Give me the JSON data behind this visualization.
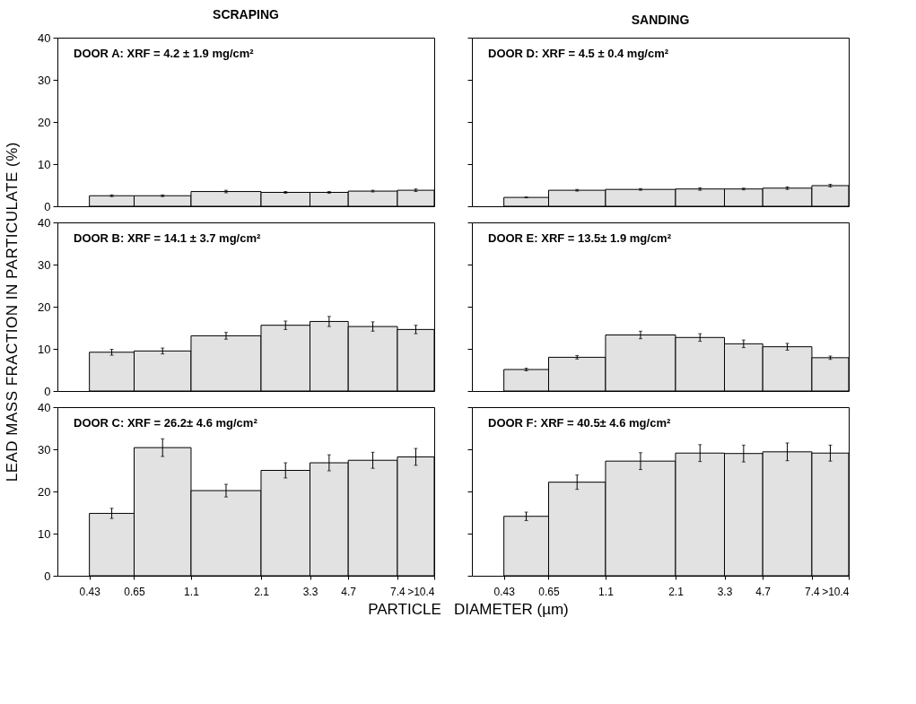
{
  "chart_data": [
    {
      "type": "histogram",
      "title": "SCRAPING",
      "annotations": [
        "DOOR A: XRF = 4.2 ± 1.9 mg/cm²"
      ],
      "bins": [
        0.43,
        0.65,
        1.1,
        2.1,
        3.3,
        4.7,
        7.4,
        10.4
      ],
      "values": [
        2.5,
        2.5,
        3.5,
        3.3,
        3.3,
        3.6,
        3.8
      ],
      "errors": [
        0.2,
        0.2,
        0.3,
        0.2,
        0.2,
        0.2,
        0.3
      ],
      "color": "#e2e2e2",
      "log": "x",
      "xlim": [
        0.32,
        10.4
      ],
      "ylim": [
        0,
        40
      ],
      "yticks": [
        0,
        10,
        20,
        30,
        40
      ],
      "tick_labels": "y"
    },
    {
      "type": "histogram",
      "title": "SANDING",
      "annotations": [
        "DOOR D: XRF = 4.5 ± 0.4 mg/cm²"
      ],
      "bins": [
        0.43,
        0.65,
        1.1,
        2.1,
        3.3,
        4.7,
        7.4,
        10.4
      ],
      "values": [
        2.1,
        3.8,
        4.0,
        4.1,
        4.1,
        4.3,
        4.9
      ],
      "errors": [
        0.1,
        0.2,
        0.2,
        0.3,
        0.2,
        0.3,
        0.3
      ],
      "color": "#e2e2e2",
      "log": "x",
      "xlim": [
        0.32,
        10.4
      ],
      "ylim": [
        0,
        40
      ],
      "yticks": [
        0,
        10,
        20,
        30,
        40
      ],
      "tick_labels": false
    },
    {
      "type": "histogram",
      "ylabel": "LEAD MASS FRACTION IN PARTICULATE (%)",
      "annotations": [
        "DOOR B: XRF = 14.1 ± 3.7 mg/cm²"
      ],
      "bins": [
        0.43,
        0.65,
        1.1,
        2.1,
        3.3,
        4.7,
        7.4,
        10.4
      ],
      "values": [
        9.2,
        9.5,
        13.1,
        15.6,
        16.5,
        15.3,
        14.6
      ],
      "errors": [
        0.7,
        0.7,
        0.8,
        1.0,
        1.2,
        1.1,
        1.0
      ],
      "color": "#e2e2e2",
      "log": "x",
      "xlim": [
        0.32,
        10.4
      ],
      "ylim": [
        0,
        40
      ],
      "yticks": [
        0,
        10,
        20,
        30,
        40
      ],
      "tick_labels": "y"
    },
    {
      "type": "histogram",
      "annotations": [
        "DOOR E: XRF = 13.5± 1.9 mg/cm²"
      ],
      "bins": [
        0.43,
        0.65,
        1.1,
        2.1,
        3.3,
        4.7,
        7.4,
        10.4
      ],
      "values": [
        5.1,
        8.0,
        13.3,
        12.7,
        11.2,
        10.5,
        7.9
      ],
      "errors": [
        0.3,
        0.4,
        0.9,
        0.9,
        0.9,
        0.8,
        0.4
      ],
      "color": "#e2e2e2",
      "log": "x",
      "xlim": [
        0.32,
        10.4
      ],
      "ylim": [
        0,
        40
      ],
      "yticks": [
        0,
        10,
        20,
        30,
        40
      ],
      "tick_labels": false
    },
    {
      "type": "histogram",
      "xlabel": "PARTICLE   DIAMETER (µm)",
      "annotations": [
        "DOOR C: XRF = 26.2± 4.6 mg/cm²"
      ],
      "bins": [
        0.43,
        0.65,
        1.1,
        2.1,
        3.3,
        4.7,
        7.4,
        10.4
      ],
      "values": [
        14.8,
        30.4,
        20.2,
        25.0,
        26.8,
        27.4,
        28.2
      ],
      "errors": [
        1.2,
        2.1,
        1.5,
        1.8,
        1.9,
        1.9,
        2.0
      ],
      "color": "#e2e2e2",
      "log": "x",
      "xlim": [
        0.32,
        10.4
      ],
      "xticks": [
        0.43,
        0.65,
        1.1,
        2.1,
        3.3,
        4.7,
        7.4,
        {
          "value": 10.4,
          "label": ">10.4"
        }
      ],
      "ylim": [
        0,
        40
      ],
      "yticks": [
        0,
        10,
        20,
        30,
        40
      ]
    },
    {
      "type": "histogram",
      "annotations": [
        "DOOR F: XRF = 40.5± 4.6 mg/cm²"
      ],
      "bins": [
        0.43,
        0.65,
        1.1,
        2.1,
        3.3,
        4.7,
        7.4,
        10.4
      ],
      "values": [
        14.1,
        22.2,
        27.2,
        29.1,
        29.0,
        29.4,
        29.1
      ],
      "errors": [
        1.0,
        1.7,
        2.0,
        2.0,
        2.0,
        2.1,
        1.9
      ],
      "color": "#e2e2e2",
      "log": "x",
      "xlim": [
        0.32,
        10.4
      ],
      "xticks": [
        0.43,
        0.65,
        1.1,
        2.1,
        3.3,
        4.7,
        7.4,
        {
          "value": 10.4,
          "label": ">10.4"
        }
      ],
      "ylim": [
        0,
        40
      ],
      "yticks": [
        0,
        10,
        20,
        30,
        40
      ],
      "tick_labels": "x"
    }
  ]
}
